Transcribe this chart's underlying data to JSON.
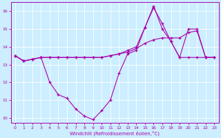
{
  "xlabel": "Windchill (Refroidissement éolien,°C)",
  "background_color": "#cceeff",
  "line_color": "#aa00aa",
  "xlim": [
    -0.5,
    23.5
  ],
  "ylim": [
    9.7,
    16.5
  ],
  "yticks": [
    10,
    11,
    12,
    13,
    14,
    15,
    16
  ],
  "xticks": [
    0,
    1,
    2,
    3,
    4,
    5,
    6,
    7,
    8,
    9,
    10,
    11,
    12,
    13,
    14,
    15,
    16,
    17,
    18,
    19,
    20,
    21,
    22,
    23
  ],
  "lines": [
    {
      "x": [
        0,
        1,
        2,
        3,
        4,
        5,
        6,
        7,
        8,
        9,
        10,
        11,
        12,
        13,
        14,
        15,
        16,
        17,
        18,
        19,
        20,
        21,
        22,
        23
      ],
      "y": [
        13.5,
        13.2,
        13.3,
        13.4,
        12.0,
        11.3,
        11.1,
        10.5,
        10.1,
        9.9,
        10.4,
        11.0,
        12.5,
        13.6,
        13.8,
        15.1,
        16.3,
        15.0,
        14.3,
        13.4,
        13.4,
        13.4,
        13.4,
        13.4
      ]
    },
    {
      "x": [
        0,
        1,
        2,
        3,
        4,
        5,
        6,
        7,
        8,
        9,
        10,
        11,
        12,
        13,
        14,
        15,
        16,
        17,
        18,
        19,
        20,
        21,
        22,
        23
      ],
      "y": [
        13.5,
        13.2,
        13.3,
        13.4,
        13.4,
        13.4,
        13.4,
        13.4,
        13.4,
        13.4,
        13.4,
        13.5,
        13.6,
        13.7,
        13.9,
        14.2,
        14.4,
        14.5,
        14.5,
        14.5,
        14.8,
        14.9,
        13.4,
        13.4
      ]
    },
    {
      "x": [
        0,
        1,
        2,
        3,
        4,
        5,
        6,
        7,
        8,
        9,
        10,
        11,
        12,
        13,
        14,
        15,
        16,
        17,
        18,
        19,
        20,
        21,
        22,
        23
      ],
      "y": [
        13.5,
        13.2,
        13.3,
        13.4,
        13.4,
        13.4,
        13.4,
        13.4,
        13.4,
        13.4,
        13.4,
        13.5,
        13.6,
        13.8,
        14.0,
        15.1,
        16.2,
        15.3,
        14.3,
        13.4,
        15.0,
        15.0,
        13.4,
        13.4
      ]
    }
  ]
}
